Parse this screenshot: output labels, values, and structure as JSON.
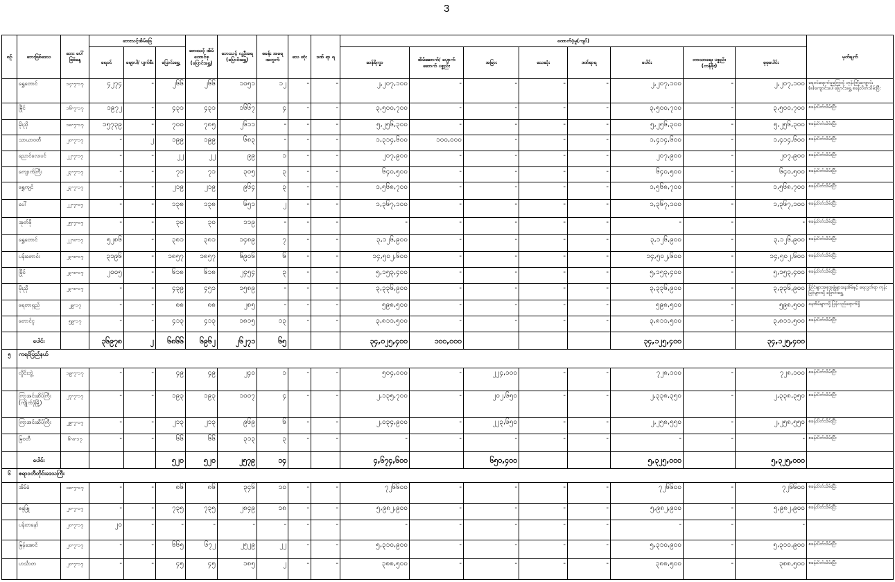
{
  "page_number": "3",
  "header": {
    "no": "စဉ်",
    "area": "ဘေးဖြစ်ဒေသ",
    "date": "ဘေး ပေါ် ဖြစ်နေ့",
    "houses_group": "ဘေးသင့်အိမ်ခြေ",
    "houses_flooded": "ရေဝင်",
    "houses_destroyed": "မျောပါ/ ပျက်စီး",
    "houses_relocated": "ပြောင်းရွှေ့",
    "households": "ဘေးသင့် အိမ် ထောင်စု (ပြောင်းရွှေ့)",
    "population": "ဘေးသင့် လူဦးရေ (ပြောင်းရွှေ့)",
    "camps": "စခန်း အရေ အတွက်",
    "dead": "သေ ဆုံး",
    "injured": "ဒဏ် ရာ ရ",
    "aid_group": "ထောက်ပံ့မှု(ကျပ်)",
    "rice": "ဆန်ရိက္ခာ",
    "building": "အိမ်ဆောက်/ ပျောက်ဆောက် ပစ္စည်း",
    "other": "အခြား",
    "aid_dead": "သေဆုံး",
    "aid_injured": "ဒဏ်ရာရ",
    "sum": "ပေါင်း",
    "religious": "ဘာသာရေး ပစ္စည်း (တန်ဖိုး)",
    "grand_total": "စုစုပေါင်း",
    "remarks": "မှတ်ချက်"
  },
  "rows": [
    {
      "type": "data",
      "no": "",
      "cells": [
        "ရွှေတောင်",
        "၁၄-၇-၁၇",
        "၄၂၇၄",
        "-",
        "၂၆၆",
        "၂၆၆",
        "၁၀၅၁",
        "၁၂",
        "-",
        "-",
        "၂,၂၀၇,၁၀၀",
        "-",
        "-",
        "-",
        "-",
        "၂,၂၀၇,၁၀၀",
        "-",
        "၂,၂၀၇,၁၀၀",
        "ရေဝင်ရောက်မှုကြောင့် ဘုန်းကြီးကျောင်း (၈)ကျောင်းပေါ်ပြောင်းရွှေ့ စခန်းပိတ်သိမ်းပြီး"
      ]
    },
    {
      "type": "data",
      "no": "",
      "cells": [
        "မြိုင်",
        "၁၆-၇-၁၇",
        "၁၉၇၂",
        "-",
        "၄၃၁",
        "၄၃၁",
        "၁၆၆၇",
        "၄",
        "-",
        "-",
        "၃,၅၀၀,၇၀၀",
        "-",
        "-",
        "-",
        "-",
        "၃,၅၀၀,၇၀၀",
        "-",
        "၃,၅၀၀,၇၀၀",
        "စခန်းပိတ်သိမ်းပြီး"
      ]
    },
    {
      "type": "data",
      "no": "",
      "cells": [
        "မိုးညို",
        "၁၈-၇-၁၇",
        "၁၅၇၃၉",
        "-",
        "၇၀၀",
        "၇၈၅",
        "၂၆၁၁",
        "-",
        "-",
        "-",
        "၅,၂၅၆,၃၀၀",
        "-",
        "-",
        "-",
        "-",
        "၅,၂၅၆,၃၀၀",
        "-",
        "၅,၂၅၆,၃၀၀",
        "စခန်းပိတ်သိမ်းပြီး"
      ]
    },
    {
      "type": "data",
      "no": "",
      "cells": [
        "သာယာဝတီ",
        "၂၀-၇-၁၇",
        "-",
        "၂",
        "၁၉၉",
        "၁၉၉",
        "၆၈၃",
        "-",
        "-",
        "-",
        "၁,၃၁၄,၆၀၀",
        "၁၀၀,၀၀၀",
        "-",
        "-",
        "-",
        "၁,၄၁၄,၆၀၀",
        "-",
        "၁,၄၁၄,၆၀၀",
        "စခန်းပိတ်သိမ်းပြီး"
      ]
    },
    {
      "type": "data",
      "no": "",
      "cells": [
        "ညောင်လေးပင်",
        "၂၂-၇-၁၇",
        "-",
        "-",
        "၂၂",
        "၂၂",
        "၉၉",
        "၁",
        "-",
        "-",
        "၂၀၇,၉၀၀",
        "-",
        "-",
        "-",
        "-",
        "၂၀၇,၉၀၀",
        "-",
        "၂၀၇,၉၀၀",
        "စခန်းပိတ်သိမ်းပြီး"
      ]
    },
    {
      "type": "data",
      "no": "",
      "cells": [
        "ကျောက်ကြီး",
        "၂၃-၇-၁၇",
        "-",
        "-",
        "၇၁",
        "၇၁",
        "၃၀၅",
        "၃",
        "-",
        "-",
        "၆၄၀,၅၀၀",
        "-",
        "-",
        "-",
        "-",
        "၆၄၀,၅၀၀",
        "-",
        "၆၄၀,၅၀၀",
        "စခန်းပိတ်သိမ်းပြီး"
      ]
    },
    {
      "type": "data",
      "no": "",
      "cells": [
        "ရွှေကျင်",
        "၂၃-၇-၁၇",
        "-",
        "-",
        "၂၁၉",
        "၂၁၉",
        "၉၆၄",
        "၃",
        "-",
        "-",
        "၁,၅၆၈,၇၀၀",
        "-",
        "-",
        "-",
        "-",
        "၁,၅၆၈,၇၀၀",
        "-",
        "၁,၅၆၈,၇၀၀",
        "စခန်းပိတ်သိမ်းပြီး"
      ]
    },
    {
      "type": "data",
      "no": "",
      "cells": [
        "ပေါ်",
        "၂၂-၇-၁၇",
        "-",
        "-",
        "၁၃၈",
        "၁၃၈",
        "၆၅၁",
        "၂",
        "-",
        "-",
        "၁,၃၆၇,၁၀၀",
        "-",
        "-",
        "-",
        "-",
        "၁,၃၆၇,၁၀၀",
        "-",
        "၁,၃၆၇,၁၀၀",
        "စခန်းပိတ်သိမ်းပြီး"
      ]
    },
    {
      "type": "data",
      "no": "",
      "cells": [
        "အုတ်ဖို",
        "၂၅-၇-၁၇",
        "-",
        "-",
        "၃၀",
        "၃၀",
        "၁၁၉",
        "-",
        "-",
        "-",
        "-",
        "-",
        "-",
        "-",
        "-",
        "-",
        "-",
        "-",
        "စခန်းပိတ်သိမ်းပြီး"
      ]
    },
    {
      "type": "data",
      "no": "",
      "cells": [
        "ရွှေတောင်",
        "၂၂-၈-၁၇",
        "၅၂၈၆",
        "-",
        "၃၈၁",
        "၃၈၁",
        "၁၄၈၉",
        "၇",
        "-",
        "-",
        "၃,၁၂၆,၉၀၀",
        "-",
        "-",
        "-",
        "-",
        "၃,၁၂၆,၉၀၀",
        "-",
        "၃,၁၂၆,၉၀၀",
        "စခန်းပိတ်သိမ်းပြီး"
      ]
    },
    {
      "type": "data",
      "no": "",
      "cells": [
        "ပန်းတောင်း",
        "၂၃-၈-၁၇",
        "၃၁၉၆",
        "-",
        "၁၈၅၇",
        "၁၈၅၇",
        "၆၉၀၆",
        "၆",
        "-",
        "-",
        "၁၄,၅၀၂,၆၀၀",
        "-",
        "-",
        "-",
        "-",
        "၁၄,၅၀၂,၆၀၀",
        "-",
        "၁၄,၅၀၂,၆၀၀",
        "စခန်းပိတ်သိမ်းပြီး"
      ]
    },
    {
      "type": "data",
      "no": "",
      "cells": [
        "မြိုင်",
        "၂၃-၈-၁၇",
        "၂၀၀၅",
        "-",
        "၆၁၈",
        "၆၁၈",
        "၂၄၅၄",
        "၃",
        "-",
        "-",
        "၅,၁၅၃,၄၀၀",
        "-",
        "-",
        "-",
        "-",
        "၅,၁၅၃,၄၀၀",
        "-",
        "၅,၁၅၃,၄၀၀",
        "စခန်းပိတ်သိမ်းပြီး"
      ]
    },
    {
      "type": "data",
      "no": "",
      "cells": [
        "မိုးညို",
        "၂၃-၈-၁၇",
        "-",
        "-",
        "၄၃၉",
        "၄၅၁",
        "၁၅၈၉",
        "-",
        "-",
        "-",
        "၃,၃၃၆,၉၀၀",
        "-",
        "-",
        "-",
        "-",
        "၃,၃၃၆,၉၀၀",
        "-",
        "၃,၃၃၆,၉၀၀",
        "နိုင်ငံများအစုအဖွဲ့များနေအိမ်နှင့် ရေလွတ်ရာ ကုန်းမြင့်များသို့ ပြောင်းရွှေ့"
      ]
    },
    {
      "type": "data",
      "no": "",
      "cells": [
        "ရေတာရှည်",
        "၂၉-၁၇",
        "-",
        "-",
        "၈၈",
        "၈၈",
        "၂၈၅",
        "-",
        "-",
        "-",
        "၅၉၈,၅၀၀",
        "-",
        "-",
        "-",
        "-",
        "၅၉၈,၅၀၀",
        "-",
        "၅၉၈,၅၀၀",
        "နေအိမ်များသို့ပြန်လည်ရောက်ရှိ"
      ]
    },
    {
      "type": "data",
      "no": "",
      "cells": [
        "တောင်ငူ",
        "၅၉-၁၇",
        "-",
        "-",
        "၄၁၃",
        "၄၁၃",
        "၁၈၁၅",
        "၁၃",
        "-",
        "-",
        "၃,၈၁၁,၅၀၀",
        "-",
        "-",
        "-",
        "-",
        "၃,၈၁၁,၅၀၀",
        "-",
        "၃,၈၁၁,၅၀၀",
        "စခန်းပိတ်သိမ်းပြီး"
      ]
    },
    {
      "type": "total",
      "no": "",
      "cells": [
        "ပေါင်း",
        "",
        "၃၆၉၇၈",
        "၂",
        "၆၈၆၆",
        "၆၉၆၂",
        "၂၆၂၇၁",
        "၆၅",
        "",
        "",
        "၃၄,၀၂၅,၄၀၀",
        "၁၀၀,၀၀၀",
        "",
        "",
        "",
        "၃၄,၁၂၅,၄၀၀",
        "",
        "၃၄,၁၂၅,၄၀၀",
        ""
      ]
    },
    {
      "type": "section",
      "no": "၅",
      "title": "ကရင်ပြည်နယ်"
    },
    {
      "type": "data",
      "no": "",
      "cells": [
        "လှိုင်းဘွဲ့",
        "၁၉-၇-၁၇",
        "-",
        "-",
        "၄၉",
        "၄၉",
        "၂၄၀",
        "၁",
        "-",
        "-",
        "၅၀၄,၀၀၀",
        "-",
        "၂၂၄,၁၀၀",
        "-",
        "-",
        "၇၂၈,၁၀၀",
        "-",
        "၇၂၈,၁၀၀",
        "စခန်းပိတ်သိမ်းပြီး"
      ]
    },
    {
      "type": "data",
      "no": "",
      "cells": [
        "ကြာအင်းဆိပ်ကြီး (ကျိုက်ဒုံမြို့)",
        "၂၇-၇-၁၇",
        "-",
        "-",
        "၁၉၃",
        "၁၉၃",
        "၁၀၀၇",
        "၄",
        "-",
        "-",
        "၂,၁၃၅,၇၀၀",
        "-",
        "၂၀၂,၆၅၀",
        "-",
        "-",
        "၂,၃၃၈,၃၅၀",
        "-",
        "၂,၃၃၈,၃၅၀",
        "စခန်းပိတ်သိမ်းပြီး"
      ]
    },
    {
      "type": "data",
      "no": "",
      "cells": [
        "ကြာအင်းဆိပ်ကြီး",
        "၂၉-၇-၁၇",
        "-",
        "-",
        "၂၁၃",
        "၂၁၃",
        "၉၆၉",
        "၆",
        "-",
        "-",
        "၂,၀၃၄,၉၀၀",
        "-",
        "၂၂၃,၆၅၀",
        "-",
        "-",
        "၂,၂၅၈,၅၅၀",
        "-",
        "၂,၂၅၈,၅၅၀",
        "စခန်းပိတ်သိမ်းပြီး"
      ]
    },
    {
      "type": "data",
      "no": "",
      "cells": [
        "မြဝတီ",
        "၆-၈-၁၇",
        "-",
        "-",
        "၆၆",
        "၆၆",
        "၃၁၃",
        "၃",
        "-",
        "-",
        "-",
        "-",
        "-",
        "-",
        "-",
        "-",
        "-",
        "-",
        "စခန်းပိတ်သိမ်းပြီး"
      ]
    },
    {
      "type": "total",
      "no": "",
      "cells": [
        "ပေါင်း",
        "",
        "",
        "",
        "၅၂၀",
        "၅၂၀",
        "၂၅၇၉",
        "၁၄",
        "",
        "",
        "၄,၆၇၄,၆၀၀",
        "",
        "၆၅၀,၄၀၀",
        "",
        "",
        "၅,၃၂၅,၀၀၀",
        "",
        "၅,၃၂၅,၀၀၀",
        ""
      ]
    },
    {
      "type": "section",
      "no": "၆",
      "title": "ဧရာဝတီတိုင်းဒေသကြီး"
    },
    {
      "type": "data",
      "no": "",
      "cells": [
        "အိမ်မဲ",
        "၁၈-၇-၁၇",
        "-",
        "-",
        "၈၆",
        "၈၆",
        "၃၄၆",
        "၁၀",
        "-",
        "-",
        "၇၂၆၆၀၀",
        "-",
        "-",
        "-",
        "-",
        "၇၂၆၆၀၀",
        "-",
        "၇၂၆၆၀၀",
        "စခန်းပိတ်သိမ်းပြီး"
      ]
    },
    {
      "type": "data",
      "no": "",
      "cells": [
        "ဓနုဖြူ",
        "၂၀-၇-၁၇",
        "-",
        "-",
        "၇၃၅",
        "၇၃၅",
        "၂၈၄၉",
        "၁၈",
        "-",
        "-",
        "၅,၉၈၂,၉၀၀",
        "-",
        "-",
        "-",
        "-",
        "၅,၉၈၂,၉၀၀",
        "-",
        "၅,၉၈၂,၉၀၀",
        "စခန်းပိတ်သိမ်းပြီး"
      ]
    },
    {
      "type": "data",
      "no": "",
      "cells": [
        "ပန်းတနော်",
        "၂၀-၇-၁၇",
        "၂၀",
        "-",
        "-",
        "-",
        "-",
        "-",
        "-",
        "-",
        "-",
        "-",
        "-",
        "-",
        "-",
        "-",
        "-",
        "-",
        ""
      ]
    },
    {
      "type": "data",
      "no": "",
      "cells": [
        "မြန်အောင်",
        "၂၀-၇-၁၇",
        "-",
        "-",
        "၆၆၅",
        "၆၇၂",
        "၂၅၂၉",
        "၂၂",
        "-",
        "-",
        "၅,၃၁၀,၉၀၀",
        "-",
        "-",
        "-",
        "-",
        "၅,၃၁၀,၉၀၀",
        "-",
        "၅,၃၁၀,၉၀၀",
        "စခန်းပိတ်သိမ်းပြီး"
      ]
    },
    {
      "type": "data",
      "no": "",
      "cells": [
        "ဟင်္သာတ",
        "၂၀-၇-၁၇",
        "-",
        "-",
        "၄၅",
        "၄၅",
        "၁၈၅",
        "၂",
        "-",
        "-",
        "၃၈၈,၅၀၀",
        "-",
        "-",
        "-",
        "-",
        "၃၈၈,၅၀၀",
        "-",
        "၃၈၈,၅၀၀",
        "စခန်းပိတ်သိမ်းပြီး"
      ]
    }
  ]
}
